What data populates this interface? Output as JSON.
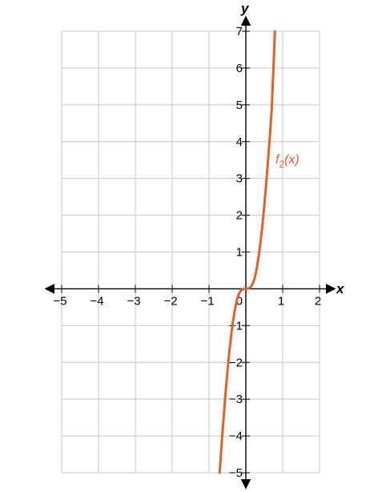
{
  "chart_data": {
    "type": "line",
    "title": "",
    "xlabel": "x",
    "ylabel": "y",
    "xlim": [
      -5,
      2
    ],
    "ylim": [
      -5,
      7
    ],
    "grid": true,
    "x_tick_labels": [
      "−5",
      "−4",
      "−3",
      "−2",
      "−1",
      "1",
      "2"
    ],
    "y_tick_labels": [
      "7",
      "6",
      "5",
      "4",
      "3",
      "2",
      "1",
      "−1",
      "−2",
      "−3",
      "−4",
      "−5"
    ],
    "x_tick_values": [
      -5,
      -4,
      -3,
      -2,
      -1,
      1,
      2
    ],
    "y_tick_values": [
      7,
      6,
      5,
      4,
      3,
      2,
      1,
      -1,
      -2,
      -3,
      -4,
      -5
    ],
    "origin_label": "0",
    "series": [
      {
        "name": "f2(x)",
        "label_main": "f",
        "label_sub": "2",
        "label_tail": "(x)",
        "color": "#e0612a",
        "x": [
          -0.71,
          -0.65,
          -0.6,
          -0.55,
          -0.5,
          -0.45,
          -0.4,
          -0.35,
          -0.3,
          -0.25,
          -0.2,
          -0.15,
          -0.1,
          -0.05,
          0,
          0.05,
          0.1,
          0.15,
          0.2,
          0.25,
          0.3,
          0.35,
          0.4,
          0.45,
          0.5,
          0.55,
          0.6,
          0.65,
          0.7,
          0.75,
          0.79
        ],
        "y": [
          -5,
          -4.12,
          -3.46,
          -2.83,
          -2.25,
          -1.73,
          -1.28,
          -0.9,
          -0.58,
          -0.33,
          -0.17,
          -0.07,
          -0.02,
          -0.003,
          0,
          0.003,
          0.02,
          0.07,
          0.17,
          0.33,
          0.58,
          0.9,
          1.28,
          1.73,
          2.25,
          2.83,
          3.46,
          4.12,
          4.84,
          6,
          7
        ]
      }
    ]
  }
}
